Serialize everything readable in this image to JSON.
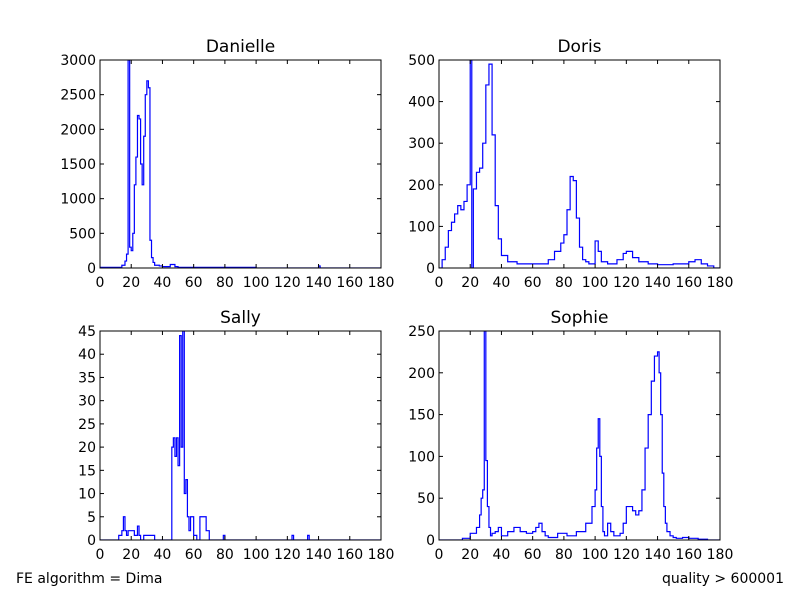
{
  "footer": {
    "left": "FE algorithm = Dima",
    "right": "quality > 600001"
  },
  "chart_data": [
    {
      "type": "step",
      "title": "Danielle",
      "xlim": [
        0,
        180
      ],
      "ylim": [
        0,
        3000
      ],
      "xticks": [
        0,
        20,
        40,
        60,
        80,
        100,
        120,
        140,
        160,
        180
      ],
      "yticks": [
        0,
        500,
        1000,
        1500,
        2000,
        2500,
        3000
      ],
      "color": "#0000ff",
      "x": [
        0,
        10,
        14,
        16,
        17,
        18,
        19,
        20,
        21,
        22,
        23,
        24,
        25,
        26,
        27,
        28,
        29,
        30,
        31,
        32,
        33,
        34,
        35,
        38,
        40,
        45,
        48,
        50,
        60,
        100,
        140,
        141,
        180
      ],
      "y": [
        10,
        10,
        40,
        100,
        200,
        3000,
        300,
        250,
        500,
        1200,
        1600,
        2200,
        2150,
        1500,
        1200,
        1900,
        2500,
        2700,
        2600,
        400,
        150,
        80,
        40,
        30,
        20,
        50,
        20,
        10,
        10,
        0,
        30,
        0,
        0
      ]
    },
    {
      "type": "step",
      "title": "Doris",
      "xlim": [
        0,
        180
      ],
      "ylim": [
        0,
        500
      ],
      "xticks": [
        0,
        20,
        40,
        60,
        80,
        100,
        120,
        140,
        160,
        180
      ],
      "yticks": [
        0,
        100,
        200,
        300,
        400,
        500
      ],
      "color": "#0000ff",
      "x": [
        0,
        2,
        4,
        6,
        8,
        10,
        12,
        14,
        16,
        18,
        20,
        21,
        22,
        24,
        26,
        28,
        30,
        32,
        34,
        36,
        38,
        40,
        44,
        50,
        60,
        66,
        70,
        74,
        78,
        80,
        82,
        84,
        86,
        88,
        90,
        92,
        94,
        96,
        100,
        102,
        104,
        108,
        114,
        118,
        120,
        124,
        128,
        134,
        140,
        150,
        160,
        164,
        168,
        172,
        176
      ],
      "y": [
        0,
        20,
        50,
        90,
        110,
        130,
        150,
        140,
        160,
        200,
        500,
        0,
        190,
        230,
        240,
        300,
        440,
        490,
        320,
        150,
        70,
        30,
        15,
        10,
        10,
        10,
        20,
        40,
        60,
        80,
        140,
        220,
        210,
        120,
        50,
        20,
        15,
        10,
        65,
        40,
        15,
        10,
        20,
        35,
        40,
        25,
        15,
        10,
        8,
        10,
        15,
        20,
        10,
        5,
        0
      ]
    },
    {
      "type": "step",
      "title": "Sally",
      "xlim": [
        0,
        180
      ],
      "ylim": [
        0,
        45
      ],
      "xticks": [
        0,
        20,
        40,
        60,
        80,
        100,
        120,
        140,
        160,
        180
      ],
      "yticks": [
        0,
        5,
        10,
        15,
        20,
        25,
        30,
        35,
        40,
        45
      ],
      "color": "#0000ff",
      "x": [
        0,
        12,
        14,
        15,
        16,
        17,
        18,
        20,
        22,
        24,
        25,
        26,
        28,
        30,
        33,
        35,
        46,
        47,
        48,
        49,
        50,
        51,
        52,
        53,
        54,
        55,
        56,
        57,
        58,
        60,
        62,
        64,
        68,
        70,
        72,
        78,
        79,
        80,
        122,
        123,
        124,
        132,
        133,
        134,
        180
      ],
      "y": [
        0,
        1,
        2,
        5,
        2,
        1,
        2,
        2,
        1,
        3,
        1,
        0,
        1,
        1,
        1,
        0,
        20,
        22,
        18,
        22,
        16,
        44,
        20,
        50,
        10,
        13,
        5,
        2,
        5,
        1,
        0,
        5,
        2,
        0,
        0,
        0,
        1,
        0,
        0,
        1,
        0,
        0,
        1,
        0,
        0
      ]
    },
    {
      "type": "step",
      "title": "Sophie",
      "xlim": [
        0,
        180
      ],
      "ylim": [
        0,
        250
      ],
      "xticks": [
        0,
        20,
        40,
        60,
        80,
        100,
        120,
        140,
        160,
        180
      ],
      "yticks": [
        0,
        50,
        100,
        150,
        200,
        250
      ],
      "color": "#0000ff",
      "x": [
        0,
        15,
        20,
        24,
        26,
        27,
        28,
        29,
        30,
        31,
        32,
        33,
        34,
        36,
        38,
        40,
        44,
        48,
        52,
        56,
        60,
        62,
        64,
        66,
        68,
        70,
        76,
        82,
        88,
        94,
        98,
        100,
        101,
        102,
        103,
        104,
        105,
        106,
        108,
        110,
        112,
        116,
        118,
        120,
        124,
        126,
        128,
        130,
        132,
        134,
        136,
        138,
        140,
        141,
        142,
        143,
        144,
        145,
        146,
        148,
        150,
        152,
        156,
        160,
        166,
        172,
        180
      ],
      "y": [
        0,
        2,
        8,
        15,
        30,
        50,
        60,
        250,
        95,
        40,
        15,
        5,
        8,
        10,
        15,
        5,
        10,
        15,
        10,
        8,
        10,
        15,
        20,
        10,
        5,
        3,
        8,
        5,
        10,
        20,
        40,
        60,
        110,
        145,
        100,
        40,
        10,
        5,
        20,
        10,
        5,
        8,
        20,
        40,
        35,
        30,
        35,
        60,
        110,
        150,
        190,
        220,
        225,
        200,
        150,
        80,
        40,
        20,
        10,
        5,
        3,
        2,
        3,
        2,
        1,
        0,
        0
      ]
    }
  ]
}
